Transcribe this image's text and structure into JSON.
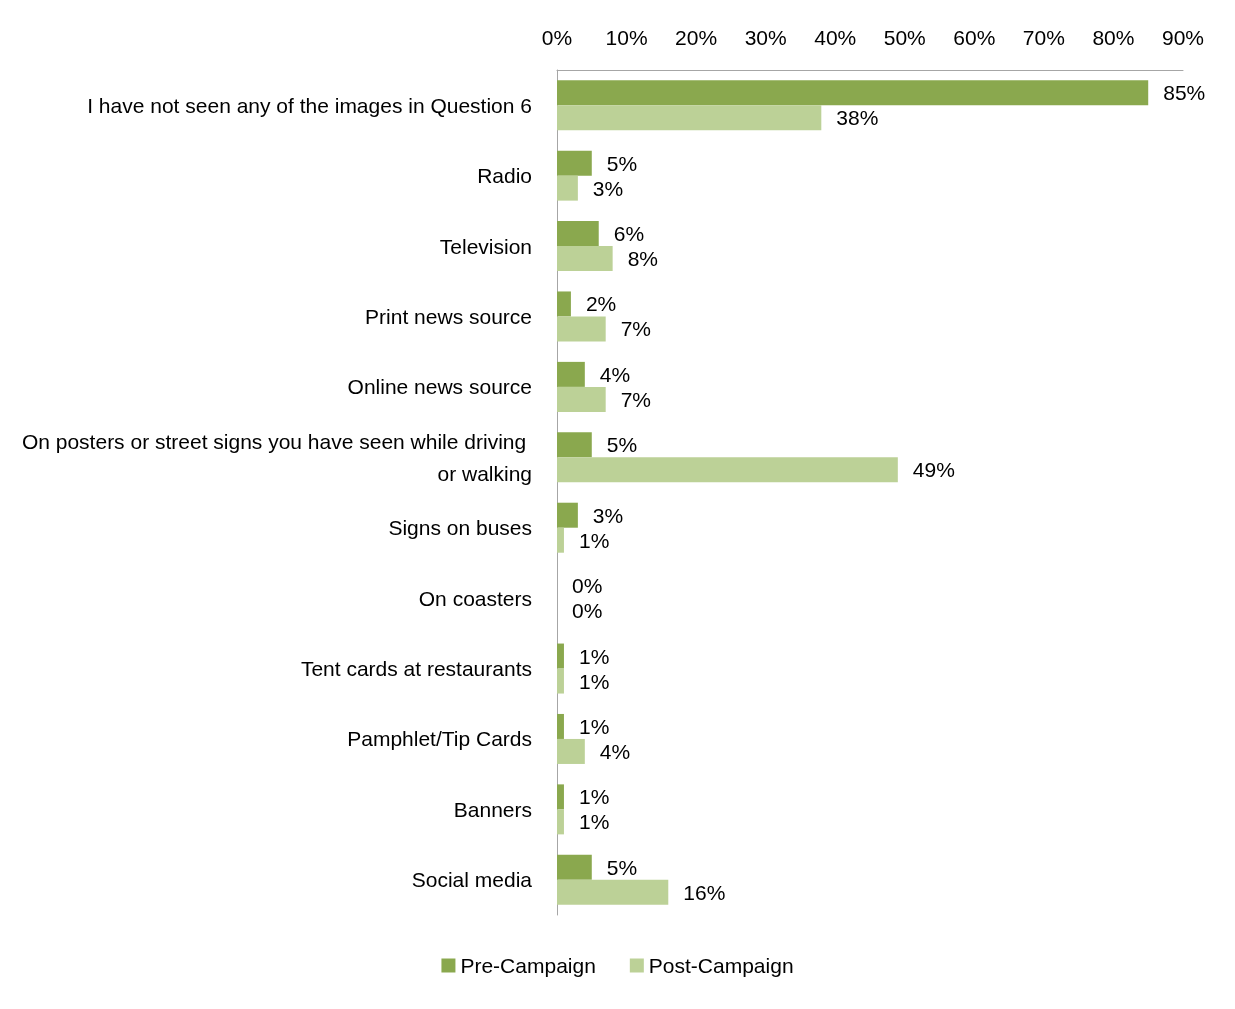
{
  "chart_data": {
    "type": "bar",
    "orientation": "horizontal",
    "categories": [
      "I have not seen any of the images in Question 6",
      "Radio",
      "Television",
      "Print news source",
      "Online news source",
      "On posters or street signs you have seen while driving or walking",
      "Signs on buses",
      "On coasters",
      "Tent cards at restaurants",
      "Pamphlet/Tip Cards",
      "Banners",
      "Social media"
    ],
    "series": [
      {
        "name": "Pre-Campaign",
        "color": "#8aa84e",
        "values": [
          85,
          5,
          6,
          2,
          4,
          5,
          3,
          0,
          1,
          1,
          1,
          5
        ],
        "value_labels": [
          "85%",
          "5%",
          "6%",
          "2%",
          "4%",
          "5%",
          "3%",
          "0%",
          "1%",
          "1%",
          "1%",
          "5%"
        ]
      },
      {
        "name": "Post-Campaign",
        "color": "#bcd197",
        "values": [
          38,
          3,
          8,
          7,
          7,
          49,
          1,
          0,
          1,
          4,
          1,
          16
        ],
        "value_labels": [
          "38%",
          "3%",
          "8%",
          "7%",
          "7%",
          "49%",
          "1%",
          "0%",
          "1%",
          "4%",
          "1%",
          "16%"
        ]
      }
    ],
    "xlim": [
      0,
      90
    ],
    "xticks": [
      {
        "value": 0,
        "label": "0%"
      },
      {
        "value": 10,
        "label": "10%"
      },
      {
        "value": 20,
        "label": "20%"
      },
      {
        "value": 30,
        "label": "30%"
      },
      {
        "value": 40,
        "label": "40%"
      },
      {
        "value": 50,
        "label": "50%"
      },
      {
        "value": 60,
        "label": "60%"
      },
      {
        "value": 70,
        "label": "70%"
      },
      {
        "value": 80,
        "label": "80%"
      },
      {
        "value": 90,
        "label": "90%"
      }
    ],
    "legend": "bottom"
  }
}
